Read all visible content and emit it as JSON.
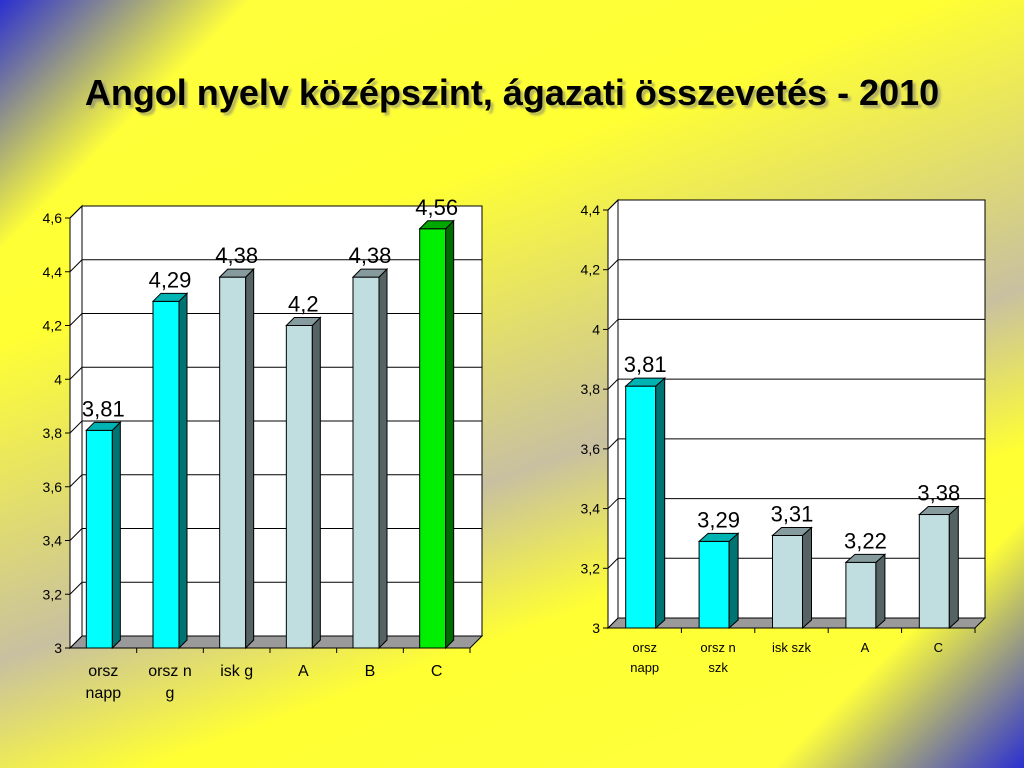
{
  "title": "Angol nyelv középszint, ágazati összevetés - 2010",
  "chart_data": [
    {
      "type": "bar",
      "categories": [
        [
          "orsz",
          "napp"
        ],
        [
          "orsz n",
          "g"
        ],
        [
          "isk g"
        ],
        [
          "A"
        ],
        [
          "B"
        ],
        [
          "C"
        ]
      ],
      "values": [
        3.81,
        4.29,
        4.38,
        4.2,
        4.38,
        4.56
      ],
      "value_labels": [
        "3,81",
        "4,29",
        "4,38",
        "4,2",
        "4,38",
        "4,56"
      ],
      "bar_colors": [
        "#00ffff",
        "#00ffff",
        "#c0dde0",
        "#c0dde0",
        "#c0dde0",
        "#00ee00"
      ],
      "ylim": [
        3,
        4.6
      ],
      "yticks": [
        "3",
        "3,2",
        "3,4",
        "3,6",
        "3,8",
        "4",
        "4,2",
        "4,4",
        "4,6"
      ],
      "grid": true
    },
    {
      "type": "bar",
      "categories": [
        [
          "orsz",
          "napp"
        ],
        [
          "orsz n",
          "szk"
        ],
        [
          "isk szk"
        ],
        [
          "A"
        ],
        [
          "C"
        ]
      ],
      "values": [
        3.81,
        3.29,
        3.31,
        3.22,
        3.38
      ],
      "value_labels": [
        "3,81",
        "3,29",
        "3,31",
        "3,22",
        "3,38"
      ],
      "bar_colors": [
        "#00ffff",
        "#00ffff",
        "#c0dde0",
        "#c0dde0",
        "#c0dde0"
      ],
      "ylim": [
        3,
        4.4
      ],
      "yticks": [
        "3",
        "3,2",
        "3,4",
        "3,6",
        "3,8",
        "4",
        "4,2",
        "4,4"
      ],
      "grid": true
    }
  ]
}
